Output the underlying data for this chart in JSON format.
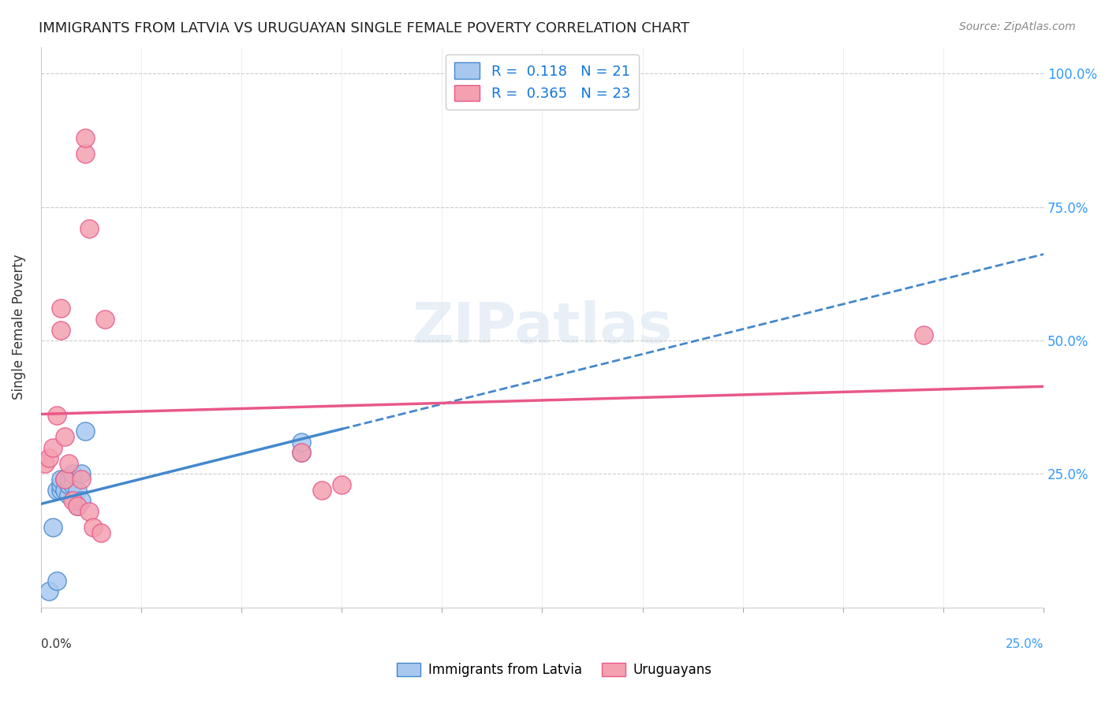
{
  "title": "IMMIGRANTS FROM LATVIA VS URUGUAYAN SINGLE FEMALE POVERTY CORRELATION CHART",
  "source": "Source: ZipAtlas.com",
  "ylabel": "Single Female Poverty",
  "blue_r": 0.118,
  "blue_n": 21,
  "pink_r": 0.365,
  "pink_n": 23,
  "blue_color": "#a8c8f0",
  "pink_color": "#f4a0b0",
  "blue_line_color": "#4488cc",
  "pink_line_color": "#e85888",
  "watermark": "ZIPatlas",
  "blue_scatter_x": [
    0.002,
    0.003,
    0.004,
    0.004,
    0.005,
    0.005,
    0.005,
    0.006,
    0.006,
    0.007,
    0.007,
    0.007,
    0.008,
    0.008,
    0.009,
    0.009,
    0.01,
    0.01,
    0.011,
    0.065,
    0.065
  ],
  "blue_scatter_y": [
    0.03,
    0.15,
    0.22,
    0.05,
    0.22,
    0.23,
    0.24,
    0.22,
    0.24,
    0.21,
    0.23,
    0.24,
    0.23,
    0.25,
    0.19,
    0.22,
    0.2,
    0.25,
    0.33,
    0.29,
    0.31
  ],
  "pink_scatter_x": [
    0.001,
    0.002,
    0.003,
    0.004,
    0.005,
    0.005,
    0.006,
    0.006,
    0.007,
    0.008,
    0.009,
    0.01,
    0.011,
    0.011,
    0.012,
    0.012,
    0.013,
    0.015,
    0.016,
    0.065,
    0.07,
    0.075,
    0.22
  ],
  "pink_scatter_y": [
    0.27,
    0.28,
    0.3,
    0.36,
    0.56,
    0.52,
    0.24,
    0.32,
    0.27,
    0.2,
    0.19,
    0.24,
    0.85,
    0.88,
    0.71,
    0.18,
    0.15,
    0.14,
    0.54,
    0.29,
    0.22,
    0.23,
    0.51
  ],
  "xmin": 0.0,
  "xmax": 0.25,
  "ymin": 0.0,
  "ymax": 1.05,
  "yticks": [
    0.25,
    0.5,
    0.75,
    1.0
  ],
  "ytick_labels": [
    "25.0%",
    "50.0%",
    "75.0%",
    "100.0%"
  ],
  "xtick_label_left": "0.0%",
  "xtick_label_right": "25.0%"
}
